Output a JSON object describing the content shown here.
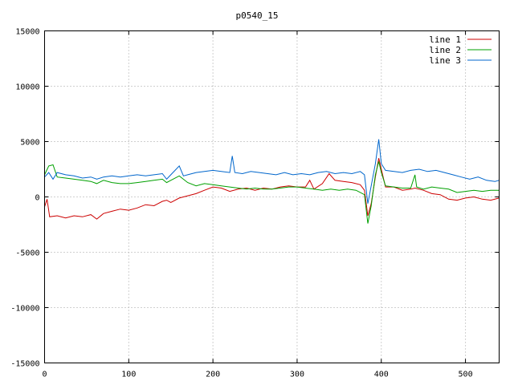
{
  "chart_data": {
    "type": "line",
    "title": "p0540_15",
    "xlabel": "",
    "ylabel": "",
    "xlim": [
      0,
      540
    ],
    "ylim": [
      -15000,
      15000
    ],
    "x_ticks": [
      0,
      100,
      200,
      300,
      400,
      500
    ],
    "y_ticks": [
      -15000,
      -10000,
      -5000,
      0,
      5000,
      10000,
      15000
    ],
    "x_tick_labels": [
      "0",
      "100",
      "200",
      "300",
      "400",
      "500"
    ],
    "y_tick_labels": [
      "-15000",
      "-10000",
      "-5000",
      "0",
      "5000",
      "10000",
      "15000"
    ],
    "grid": true,
    "legend_position": "top-right",
    "series": [
      {
        "name": "line 1",
        "color": "#cc0000",
        "points": [
          [
            0,
            -900
          ],
          [
            3,
            -200
          ],
          [
            6,
            -1800
          ],
          [
            15,
            -1700
          ],
          [
            25,
            -1900
          ],
          [
            35,
            -1700
          ],
          [
            45,
            -1800
          ],
          [
            55,
            -1600
          ],
          [
            62,
            -2000
          ],
          [
            70,
            -1500
          ],
          [
            80,
            -1300
          ],
          [
            90,
            -1100
          ],
          [
            100,
            -1200
          ],
          [
            110,
            -1000
          ],
          [
            120,
            -700
          ],
          [
            130,
            -800
          ],
          [
            140,
            -400
          ],
          [
            145,
            -300
          ],
          [
            150,
            -500
          ],
          [
            160,
            -100
          ],
          [
            170,
            100
          ],
          [
            180,
            300
          ],
          [
            190,
            600
          ],
          [
            200,
            900
          ],
          [
            210,
            800
          ],
          [
            220,
            500
          ],
          [
            230,
            700
          ],
          [
            240,
            800
          ],
          [
            250,
            600
          ],
          [
            260,
            800
          ],
          [
            270,
            700
          ],
          [
            280,
            900
          ],
          [
            290,
            1000
          ],
          [
            300,
            900
          ],
          [
            310,
            900
          ],
          [
            315,
            1500
          ],
          [
            320,
            700
          ],
          [
            330,
            1200
          ],
          [
            338,
            2100
          ],
          [
            345,
            1500
          ],
          [
            355,
            1400
          ],
          [
            365,
            1300
          ],
          [
            375,
            1100
          ],
          [
            380,
            600
          ],
          [
            384,
            -1700
          ],
          [
            388,
            -600
          ],
          [
            393,
            1800
          ],
          [
            397,
            3500
          ],
          [
            400,
            2500
          ],
          [
            405,
            900
          ],
          [
            415,
            900
          ],
          [
            425,
            600
          ],
          [
            435,
            700
          ],
          [
            440,
            800
          ],
          [
            450,
            600
          ],
          [
            460,
            300
          ],
          [
            470,
            200
          ],
          [
            480,
            -200
          ],
          [
            490,
            -300
          ],
          [
            500,
            -100
          ],
          [
            510,
            0
          ],
          [
            520,
            -200
          ],
          [
            530,
            -300
          ],
          [
            540,
            -100
          ]
        ]
      },
      {
        "name": "line 2",
        "color": "#00a000",
        "points": [
          [
            0,
            2000
          ],
          [
            5,
            2800
          ],
          [
            10,
            2900
          ],
          [
            15,
            1800
          ],
          [
            25,
            1700
          ],
          [
            35,
            1600
          ],
          [
            45,
            1500
          ],
          [
            55,
            1400
          ],
          [
            62,
            1200
          ],
          [
            70,
            1500
          ],
          [
            80,
            1300
          ],
          [
            90,
            1200
          ],
          [
            100,
            1200
          ],
          [
            110,
            1300
          ],
          [
            120,
            1400
          ],
          [
            130,
            1500
          ],
          [
            140,
            1600
          ],
          [
            145,
            1300
          ],
          [
            150,
            1500
          ],
          [
            160,
            1900
          ],
          [
            170,
            1300
          ],
          [
            180,
            1000
          ],
          [
            190,
            1200
          ],
          [
            200,
            1100
          ],
          [
            210,
            1000
          ],
          [
            220,
            900
          ],
          [
            230,
            800
          ],
          [
            240,
            700
          ],
          [
            250,
            800
          ],
          [
            260,
            700
          ],
          [
            270,
            700
          ],
          [
            280,
            800
          ],
          [
            290,
            900
          ],
          [
            300,
            900
          ],
          [
            310,
            800
          ],
          [
            320,
            700
          ],
          [
            330,
            600
          ],
          [
            340,
            700
          ],
          [
            350,
            600
          ],
          [
            360,
            700
          ],
          [
            370,
            600
          ],
          [
            380,
            200
          ],
          [
            384,
            -2400
          ],
          [
            388,
            -800
          ],
          [
            393,
            2000
          ],
          [
            397,
            3200
          ],
          [
            400,
            2200
          ],
          [
            405,
            1000
          ],
          [
            415,
            900
          ],
          [
            425,
            800
          ],
          [
            435,
            800
          ],
          [
            440,
            2000
          ],
          [
            442,
            900
          ],
          [
            450,
            700
          ],
          [
            460,
            900
          ],
          [
            470,
            800
          ],
          [
            480,
            700
          ],
          [
            490,
            400
          ],
          [
            500,
            500
          ],
          [
            510,
            600
          ],
          [
            520,
            500
          ],
          [
            530,
            600
          ],
          [
            540,
            600
          ]
        ]
      },
      {
        "name": "line 3",
        "color": "#0066cc",
        "points": [
          [
            0,
            1800
          ],
          [
            5,
            2200
          ],
          [
            10,
            1600
          ],
          [
            15,
            2200
          ],
          [
            25,
            2000
          ],
          [
            35,
            1900
          ],
          [
            45,
            1700
          ],
          [
            55,
            1800
          ],
          [
            62,
            1600
          ],
          [
            70,
            1800
          ],
          [
            80,
            1900
          ],
          [
            90,
            1800
          ],
          [
            100,
            1900
          ],
          [
            110,
            2000
          ],
          [
            120,
            1900
          ],
          [
            130,
            2000
          ],
          [
            140,
            2100
          ],
          [
            145,
            1600
          ],
          [
            150,
            2000
          ],
          [
            160,
            2800
          ],
          [
            165,
            1900
          ],
          [
            170,
            2000
          ],
          [
            180,
            2200
          ],
          [
            190,
            2300
          ],
          [
            200,
            2400
          ],
          [
            210,
            2300
          ],
          [
            220,
            2200
          ],
          [
            223,
            3700
          ],
          [
            226,
            2200
          ],
          [
            235,
            2100
          ],
          [
            245,
            2300
          ],
          [
            255,
            2200
          ],
          [
            265,
            2100
          ],
          [
            275,
            2000
          ],
          [
            285,
            2200
          ],
          [
            295,
            2000
          ],
          [
            305,
            2100
          ],
          [
            315,
            2000
          ],
          [
            325,
            2200
          ],
          [
            335,
            2300
          ],
          [
            345,
            2100
          ],
          [
            355,
            2200
          ],
          [
            365,
            2100
          ],
          [
            375,
            2300
          ],
          [
            380,
            2000
          ],
          [
            384,
            -600
          ],
          [
            388,
            1000
          ],
          [
            393,
            3000
          ],
          [
            397,
            5200
          ],
          [
            400,
            3000
          ],
          [
            405,
            2400
          ],
          [
            415,
            2300
          ],
          [
            425,
            2200
          ],
          [
            435,
            2400
          ],
          [
            445,
            2500
          ],
          [
            455,
            2300
          ],
          [
            465,
            2400
          ],
          [
            475,
            2200
          ],
          [
            485,
            2000
          ],
          [
            495,
            1800
          ],
          [
            505,
            1600
          ],
          [
            515,
            1800
          ],
          [
            525,
            1500
          ],
          [
            535,
            1400
          ],
          [
            540,
            1500
          ]
        ]
      }
    ]
  }
}
